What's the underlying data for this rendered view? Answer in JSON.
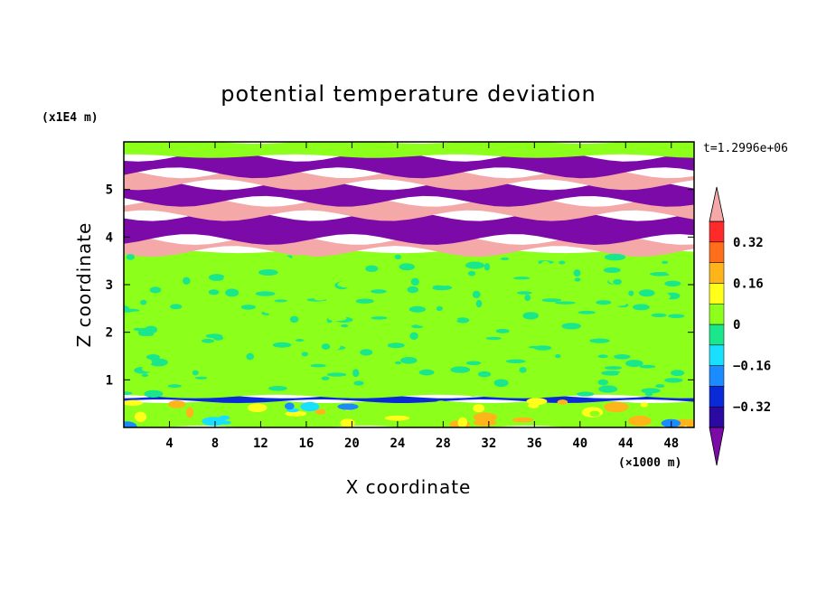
{
  "chart_data": {
    "type": "heatmap",
    "title": "potential temperature deviation",
    "xlabel": "X coordinate",
    "ylabel": "Z coordinate",
    "x_unit": "(×1000 m)",
    "y_unit": "(x1E4 m)",
    "time_label": "t=1.2996e+06",
    "xlim": [
      0,
      50
    ],
    "ylim": [
      0,
      6
    ],
    "x_ticks": [
      4,
      8,
      12,
      16,
      20,
      24,
      28,
      32,
      36,
      40,
      44,
      48
    ],
    "y_ticks": [
      1,
      2,
      3,
      4,
      5
    ],
    "colorbar": {
      "levels": [
        -0.4,
        -0.32,
        -0.24,
        -0.16,
        -0.08,
        0,
        0.08,
        0.16,
        0.24,
        0.32,
        0.4
      ],
      "labeled_ticks": [
        "0.32",
        "0.16",
        "0",
        "−0.16",
        "−0.32"
      ],
      "labeled_values": [
        0.32,
        0.16,
        0,
        -0.16,
        -0.32
      ],
      "colors": [
        "#7b0aa8",
        "#2a0aa0",
        "#0a2ad8",
        "#1a8cff",
        "#1ae0ff",
        "#1ae68c",
        "#8cff1a",
        "#ffff1a",
        "#ffb41a",
        "#ff6e1a",
        "#ff2a2a",
        "#f5a8a8"
      ],
      "extend": "both"
    },
    "bands": [
      {
        "z": [
          0.0,
          0.55
        ],
        "value": 0.05
      },
      {
        "z": [
          0.55,
          0.65
        ],
        "value": -0.25
      },
      {
        "z": [
          0.65,
          3.7
        ],
        "value": 0.04
      },
      {
        "z": [
          3.7,
          3.95
        ],
        "value": 0.5
      },
      {
        "z": [
          3.95,
          4.45
        ],
        "value": -0.5
      },
      {
        "z": [
          4.45,
          4.75
        ],
        "value": 0.5
      },
      {
        "z": [
          4.75,
          5.1
        ],
        "value": -0.5
      },
      {
        "z": [
          5.1,
          5.35
        ],
        "value": 0.5
      },
      {
        "z": [
          5.35,
          5.7
        ],
        "value": -0.5
      },
      {
        "z": [
          5.7,
          6.0
        ],
        "value": 0.05
      }
    ]
  }
}
